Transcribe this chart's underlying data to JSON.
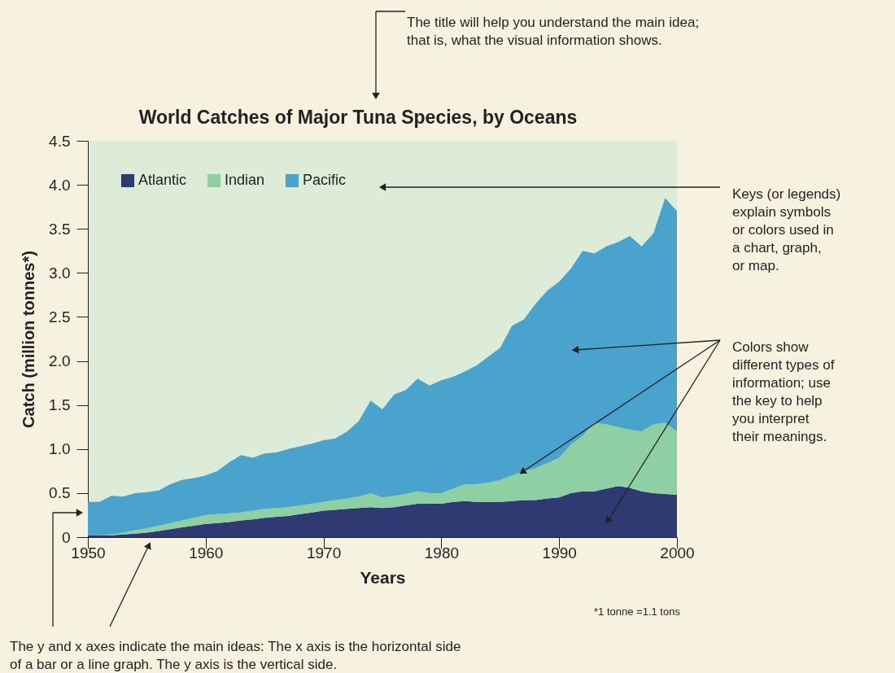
{
  "chart_data": {
    "type": "area",
    "stacked": true,
    "title": "World Catches of Major Tuna Species, by Oceans",
    "xlabel": "Years",
    "ylabel": "Catch (million tonnes*)",
    "x": [
      1950,
      1951,
      1952,
      1953,
      1954,
      1955,
      1956,
      1957,
      1958,
      1959,
      1960,
      1961,
      1962,
      1963,
      1964,
      1965,
      1966,
      1967,
      1968,
      1969,
      1970,
      1971,
      1972,
      1973,
      1974,
      1975,
      1976,
      1977,
      1978,
      1979,
      1980,
      1981,
      1982,
      1983,
      1984,
      1985,
      1986,
      1987,
      1988,
      1989,
      1990,
      1991,
      1992,
      1993,
      1994,
      1995,
      1996,
      1997,
      1998,
      1999,
      2000
    ],
    "series": [
      {
        "name": "Atlantic",
        "color": "#2f3a73",
        "values": [
          0.02,
          0.02,
          0.02,
          0.03,
          0.04,
          0.05,
          0.07,
          0.09,
          0.11,
          0.13,
          0.15,
          0.16,
          0.17,
          0.19,
          0.2,
          0.22,
          0.23,
          0.24,
          0.26,
          0.28,
          0.3,
          0.31,
          0.32,
          0.33,
          0.34,
          0.33,
          0.34,
          0.36,
          0.38,
          0.38,
          0.38,
          0.4,
          0.41,
          0.4,
          0.4,
          0.4,
          0.41,
          0.42,
          0.42,
          0.44,
          0.45,
          0.5,
          0.52,
          0.52,
          0.55,
          0.58,
          0.56,
          0.52,
          0.5,
          0.49,
          0.48
        ]
      },
      {
        "name": "Indian",
        "color": "#8fcfa4",
        "values": [
          0,
          0,
          0.01,
          0.02,
          0.04,
          0.05,
          0.06,
          0.07,
          0.08,
          0.09,
          0.1,
          0.1,
          0.1,
          0.09,
          0.1,
          0.1,
          0.1,
          0.1,
          0.1,
          0.1,
          0.1,
          0.11,
          0.12,
          0.13,
          0.16,
          0.12,
          0.13,
          0.13,
          0.14,
          0.12,
          0.12,
          0.15,
          0.19,
          0.2,
          0.22,
          0.25,
          0.29,
          0.33,
          0.36,
          0.4,
          0.45,
          0.55,
          0.63,
          0.78,
          0.73,
          0.67,
          0.66,
          0.68,
          0.78,
          0.81,
          0.72
        ]
      },
      {
        "name": "Pacific",
        "color": "#4aa3cc",
        "values": [
          0.38,
          0.38,
          0.44,
          0.41,
          0.42,
          0.41,
          0.4,
          0.44,
          0.46,
          0.45,
          0.45,
          0.49,
          0.58,
          0.65,
          0.6,
          0.63,
          0.63,
          0.66,
          0.67,
          0.68,
          0.7,
          0.7,
          0.76,
          0.86,
          1.05,
          1.0,
          1.15,
          1.18,
          1.28,
          1.22,
          1.28,
          1.27,
          1.28,
          1.35,
          1.43,
          1.5,
          1.7,
          1.72,
          1.87,
          1.96,
          2.0,
          2.0,
          2.1,
          1.92,
          2.02,
          2.1,
          2.2,
          2.1,
          2.17,
          2.55,
          2.5
        ]
      }
    ],
    "xlim": [
      1950,
      2000
    ],
    "xticks": [
      1950,
      1960,
      1970,
      1980,
      1990,
      2000
    ],
    "ylim": [
      0,
      4.5
    ],
    "yticks": [
      0,
      {
        "value": 0.5,
        "label": "0.5"
      },
      {
        "value": 1,
        "label": "1.0"
      },
      {
        "value": 1.5,
        "label": "1.5"
      },
      {
        "value": 2,
        "label": "2.0"
      },
      {
        "value": 2.5,
        "label": "2.5"
      },
      {
        "value": 3,
        "label": "3.0"
      },
      {
        "value": 3.5,
        "label": "3.5"
      },
      {
        "value": 4,
        "label": "4.0"
      },
      {
        "value": 4.5,
        "label": "4.5"
      }
    ],
    "grid": false,
    "legend": "top left",
    "annotations": [
      "The title will help you understand the main idea; that is, what the visual information shows.",
      "Keys (or legends) explain symbols or colors used in a chart, graph, or map.",
      "Colors show different types of information; use the key to help you interpret their meanings.",
      "*1 tonne =1.1 tons",
      "The y and x axes indicate the main ideas: The x axis is the horizontal side of a bar or a line graph. The y axis is the vertical side."
    ]
  }
}
